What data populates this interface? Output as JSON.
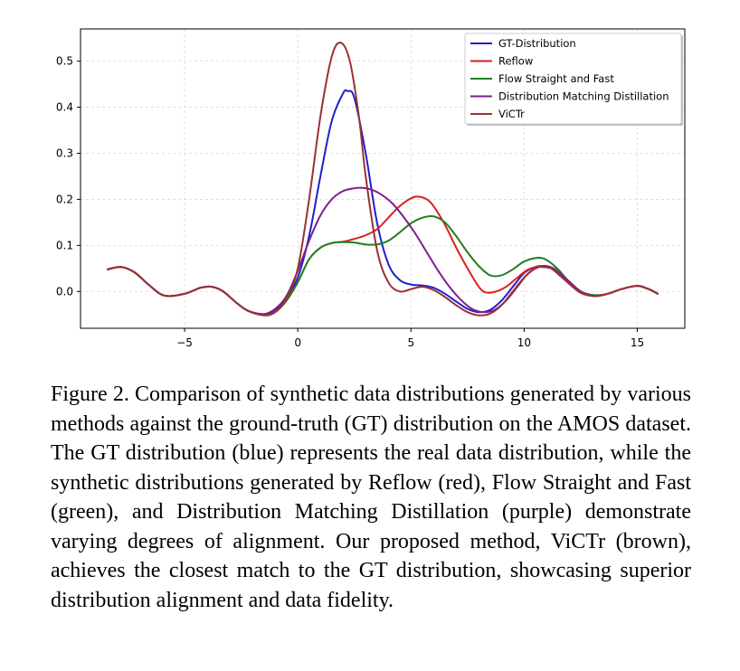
{
  "chart_data": {
    "type": "line",
    "title": "",
    "xlabel": "",
    "ylabel": "",
    "xlim": [
      -9.6,
      17.1
    ],
    "ylim": [
      -0.08,
      0.57
    ],
    "grid": true,
    "legend_position": "top-right",
    "x_ticks": [
      -5,
      0,
      5,
      10,
      15
    ],
    "x_tick_labels": [
      "−5",
      "0",
      "5",
      "10",
      "15"
    ],
    "y_ticks": [
      0.0,
      0.1,
      0.2,
      0.3,
      0.4,
      0.5
    ],
    "y_tick_labels": [
      "0.0",
      "0.1",
      "0.2",
      "0.3",
      "0.4",
      "0.5"
    ],
    "series": [
      {
        "name": "GT-Distribution",
        "color": "#1f1fcc",
        "x": [
          -8.4,
          -7.8,
          -7.2,
          -6.6,
          -5.9,
          -5.0,
          -4.3,
          -3.8,
          -3.3,
          -2.7,
          -2.2,
          -1.5,
          -1.0,
          -0.5,
          0.0,
          0.5,
          1.0,
          1.5,
          2.0,
          2.2,
          2.5,
          3.0,
          3.5,
          4.0,
          4.5,
          5.0,
          5.5,
          6.0,
          6.5,
          7.0,
          7.5,
          8.0,
          8.5,
          9.0,
          9.5,
          10.0,
          10.5,
          10.8,
          11.2,
          11.8,
          12.5,
          13.1,
          13.7,
          14.3,
          15.0,
          15.5,
          15.9
        ],
        "y": [
          0.048,
          0.053,
          0.041,
          0.015,
          -0.009,
          -0.005,
          0.008,
          0.01,
          0.0,
          -0.025,
          -0.042,
          -0.05,
          -0.04,
          -0.015,
          0.03,
          0.12,
          0.25,
          0.37,
          0.43,
          0.435,
          0.42,
          0.3,
          0.15,
          0.06,
          0.025,
          0.015,
          0.013,
          0.008,
          -0.005,
          -0.022,
          -0.038,
          -0.045,
          -0.04,
          -0.02,
          0.01,
          0.04,
          0.053,
          0.055,
          0.05,
          0.025,
          -0.003,
          -0.01,
          -0.005,
          0.005,
          0.012,
          0.005,
          -0.005
        ]
      },
      {
        "name": "Reflow",
        "color": "#dc1f1f",
        "x": [
          -8.4,
          -7.8,
          -7.2,
          -6.6,
          -5.9,
          -5.0,
          -4.3,
          -3.8,
          -3.3,
          -2.7,
          -2.2,
          -1.5,
          -1.0,
          -0.5,
          0.0,
          0.5,
          1.0,
          1.5,
          2.0,
          2.5,
          3.0,
          3.5,
          4.0,
          4.5,
          5.0,
          5.3,
          5.7,
          6.0,
          6.5,
          7.0,
          7.5,
          8.0,
          8.3,
          8.7,
          9.2,
          9.7,
          10.2,
          10.8,
          11.3,
          11.8,
          12.5,
          13.1,
          13.7,
          14.3,
          15.0,
          15.5,
          15.9
        ],
        "y": [
          0.048,
          0.053,
          0.041,
          0.015,
          -0.009,
          -0.005,
          0.008,
          0.01,
          0.0,
          -0.025,
          -0.042,
          -0.051,
          -0.045,
          -0.02,
          0.02,
          0.07,
          0.095,
          0.105,
          0.108,
          0.114,
          0.122,
          0.135,
          0.16,
          0.185,
          0.202,
          0.206,
          0.2,
          0.185,
          0.145,
          0.095,
          0.05,
          0.01,
          -0.002,
          -0.001,
          0.01,
          0.03,
          0.048,
          0.055,
          0.05,
          0.03,
          0.0,
          -0.01,
          -0.005,
          0.005,
          0.012,
          0.005,
          -0.005
        ]
      },
      {
        "name": "Flow Straight and Fast",
        "color": "#1f7f1f",
        "x": [
          -8.4,
          -7.8,
          -7.2,
          -6.6,
          -5.9,
          -5.0,
          -4.3,
          -3.8,
          -3.3,
          -2.7,
          -2.2,
          -1.5,
          -1.0,
          -0.5,
          0.0,
          0.5,
          1.0,
          1.5,
          2.0,
          2.5,
          3.0,
          3.5,
          4.0,
          4.5,
          5.0,
          5.5,
          6.0,
          6.5,
          7.0,
          7.5,
          8.0,
          8.5,
          9.0,
          9.5,
          10.0,
          10.6,
          11.0,
          11.5,
          12.0,
          12.5,
          13.1,
          13.7,
          14.3,
          15.0,
          15.5,
          15.9
        ],
        "y": [
          0.048,
          0.053,
          0.041,
          0.015,
          -0.009,
          -0.005,
          0.008,
          0.01,
          0.0,
          -0.025,
          -0.042,
          -0.051,
          -0.045,
          -0.02,
          0.02,
          0.07,
          0.095,
          0.105,
          0.107,
          0.106,
          0.102,
          0.102,
          0.11,
          0.128,
          0.148,
          0.16,
          0.163,
          0.15,
          0.12,
          0.085,
          0.055,
          0.035,
          0.035,
          0.048,
          0.065,
          0.073,
          0.068,
          0.048,
          0.02,
          0.0,
          -0.008,
          -0.005,
          0.005,
          0.012,
          0.005,
          -0.005
        ]
      },
      {
        "name": "Distribution Matching Distillation",
        "color": "#7f1f8f",
        "x": [
          -8.4,
          -7.8,
          -7.2,
          -6.6,
          -5.9,
          -5.0,
          -4.3,
          -3.8,
          -3.3,
          -2.7,
          -2.2,
          -1.5,
          -1.0,
          -0.5,
          0.0,
          0.5,
          1.0,
          1.5,
          2.0,
          2.5,
          2.8,
          3.2,
          3.7,
          4.2,
          4.7,
          5.2,
          5.7,
          6.2,
          6.7,
          7.2,
          7.7,
          8.2,
          8.7,
          9.2,
          9.7,
          10.2,
          10.8,
          11.3,
          11.8,
          12.5,
          13.1,
          13.7,
          14.3,
          15.0,
          15.5,
          15.9
        ],
        "y": [
          0.048,
          0.053,
          0.041,
          0.015,
          -0.009,
          -0.005,
          0.008,
          0.01,
          0.0,
          -0.025,
          -0.042,
          -0.049,
          -0.038,
          -0.01,
          0.045,
          0.11,
          0.165,
          0.2,
          0.218,
          0.224,
          0.225,
          0.222,
          0.21,
          0.19,
          0.16,
          0.125,
          0.085,
          0.045,
          0.01,
          -0.018,
          -0.038,
          -0.045,
          -0.04,
          -0.02,
          0.01,
          0.04,
          0.055,
          0.05,
          0.03,
          0.0,
          -0.01,
          -0.005,
          0.005,
          0.012,
          0.005,
          -0.005
        ]
      },
      {
        "name": "ViCTr",
        "color": "#9a3232",
        "x": [
          -8.4,
          -7.8,
          -7.2,
          -6.6,
          -5.9,
          -5.0,
          -4.3,
          -3.8,
          -3.3,
          -2.7,
          -2.2,
          -1.5,
          -1.0,
          -0.5,
          0.0,
          0.5,
          1.0,
          1.5,
          1.9,
          2.3,
          2.7,
          3.0,
          3.5,
          4.0,
          4.5,
          5.0,
          5.5,
          6.0,
          6.5,
          7.0,
          7.5,
          8.0,
          8.5,
          9.0,
          9.5,
          10.0,
          10.5,
          10.8,
          11.3,
          11.8,
          12.5,
          13.1,
          13.7,
          14.3,
          15.0,
          15.5,
          15.9
        ],
        "y": [
          0.048,
          0.053,
          0.041,
          0.015,
          -0.009,
          -0.005,
          0.008,
          0.01,
          0.0,
          -0.025,
          -0.042,
          -0.052,
          -0.045,
          -0.015,
          0.05,
          0.2,
          0.38,
          0.51,
          0.54,
          0.5,
          0.38,
          0.25,
          0.09,
          0.02,
          0.0,
          0.005,
          0.01,
          0.003,
          -0.012,
          -0.03,
          -0.045,
          -0.052,
          -0.048,
          -0.03,
          0.0,
          0.03,
          0.05,
          0.053,
          0.048,
          0.025,
          -0.003,
          -0.01,
          -0.005,
          0.005,
          0.012,
          0.005,
          -0.005
        ]
      }
    ]
  },
  "caption": "Figure 2. Comparison of synthetic data distributions generated by various methods against the ground-truth (GT) distribution on the AMOS dataset. The GT distribution (blue) represents the real data distribution, while the synthetic distributions generated by Reflow (red), Flow Straight and Fast (green), and Distribution Matching Distillation (purple) demonstrate varying degrees of alignment. Our proposed method, ViCTr (brown), achieves the closest match to the GT distribution, showcasing superior distribution alignment and data fidelity."
}
